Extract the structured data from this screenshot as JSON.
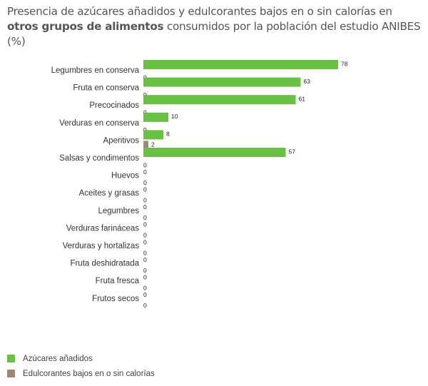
{
  "title": {
    "line1": "Presencia de azúcares añadidos y edulcorantes bajos en o sin calorías en",
    "bold": "otros grupos de alimentos",
    "rest": " consumidos por la población del estudio ANIBES (%)"
  },
  "colors": {
    "azucares": "#6abf45",
    "edulcorantes": "#9e8775"
  },
  "chart_data": {
    "type": "bar",
    "orientation": "horizontal",
    "title": "Presencia de azúcares añadidos y edulcorantes bajos en o sin calorías en otros grupos de alimentos consumidos por la población del estudio ANIBES (%)",
    "xlim": [
      0,
      78
    ],
    "grid": false,
    "legend_position": "bottom-left",
    "categories": [
      "Legumbres en conserva",
      "Fruta en conserva",
      "Precocinados",
      "Verduras en conserva",
      "Aperitivos",
      "Salsas y condimentos",
      "Huevos",
      "Aceites y grasas",
      "Legumbres",
      "Verduras farináceas",
      "Verduras y hortalizas",
      "Fruta deshidratada",
      "Fruta fresca",
      "Frutos secos"
    ],
    "series": [
      {
        "name": "Azúcares añadidos",
        "values": [
          78,
          63,
          61,
          10,
          8,
          57,
          0,
          0,
          0,
          0,
          0,
          0,
          0,
          0
        ]
      },
      {
        "name": "Edulcorantes bajos en o sin calorías",
        "values": [
          0,
          0,
          0,
          0,
          2,
          0,
          0,
          0,
          0,
          0,
          0,
          0,
          0,
          0
        ]
      }
    ]
  }
}
